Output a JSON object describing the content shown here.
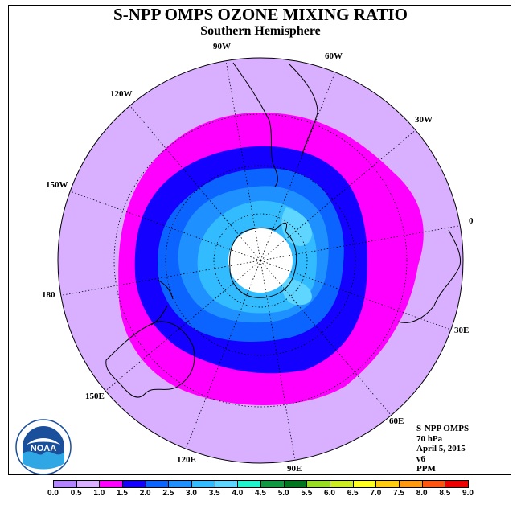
{
  "header": {
    "title": "S-NPP OMPS OZONE MIXING RATIO",
    "subtitle": "Southern Hemisphere"
  },
  "map": {
    "projection": "south-polar-stereographic",
    "longitude_labels": [
      {
        "lon": -90,
        "text": "90W"
      },
      {
        "lon": -60,
        "text": "60W"
      },
      {
        "lon": -30,
        "text": "30W"
      },
      {
        "lon": 0,
        "text": "0"
      },
      {
        "lon": 30,
        "text": "30E"
      },
      {
        "lon": 60,
        "text": "60E"
      },
      {
        "lon": 90,
        "text": "90E"
      },
      {
        "lon": 120,
        "text": "120E"
      },
      {
        "lon": 150,
        "text": "150E"
      },
      {
        "lon": 180,
        "text": "180"
      },
      {
        "lon": -150,
        "text": "150W"
      },
      {
        "lon": -120,
        "text": "120W"
      }
    ],
    "contours": [
      {
        "level_ppm": 1.0,
        "color": "#ff00ff"
      },
      {
        "level_ppm": 1.5,
        "color": "#1400ff"
      },
      {
        "level_ppm": 2.0,
        "color": "#0b64ff"
      },
      {
        "level_ppm": 2.5,
        "color": "#1e90ff"
      },
      {
        "level_ppm": 3.0,
        "color": "#33bbff"
      },
      {
        "level_ppm": 3.5,
        "color": "#5fd6ff"
      }
    ],
    "background_color": "#d8b0ff",
    "polar_night_color": "#ffffff"
  },
  "info": {
    "lines": [
      "S-NPP OMPS",
      "70 hPa",
      "April 5, 2015",
      "v6",
      "PPM"
    ]
  },
  "logo": {
    "text": "NOAA",
    "icon": "noaa-logo"
  },
  "colorbar": {
    "ticks": [
      "0.0",
      "0.5",
      "1.0",
      "1.5",
      "2.0",
      "2.5",
      "3.0",
      "3.5",
      "4.0",
      "4.5",
      "5.0",
      "5.5",
      "6.0",
      "6.5",
      "7.0",
      "7.5",
      "8.0",
      "8.5",
      "9.0"
    ],
    "colors": [
      "#b284ff",
      "#d8b0ff",
      "#ff00ff",
      "#1400ff",
      "#0b64ff",
      "#1e90ff",
      "#33bbff",
      "#5fd6ff",
      "#22f5cc",
      "#109940",
      "#00771f",
      "#99dd22",
      "#ccee22",
      "#ffff22",
      "#ffcc11",
      "#ff9910",
      "#ff5511",
      "#ee0000",
      "#8b4a28"
    ]
  }
}
